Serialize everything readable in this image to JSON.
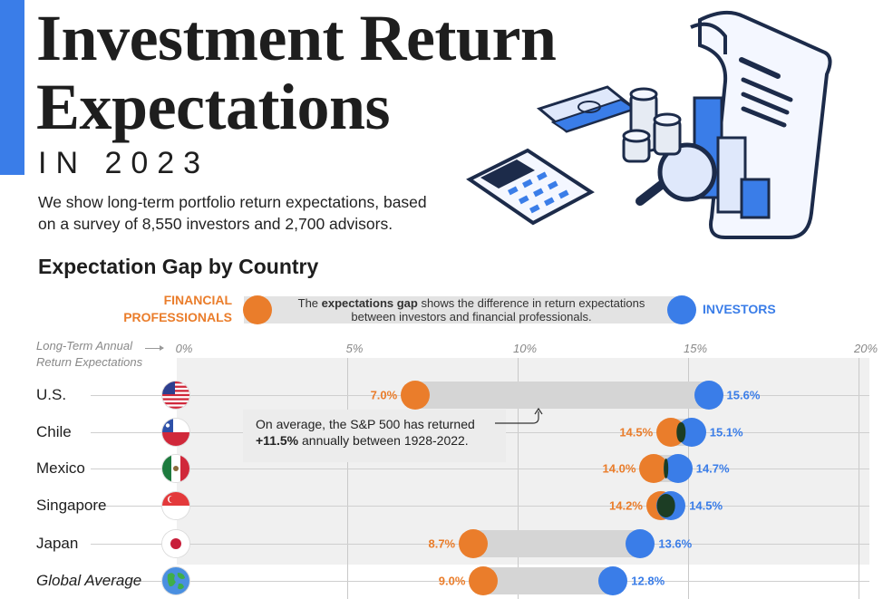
{
  "header": {
    "title_line1": "Investment Return",
    "title_line2": "Expectations",
    "year": "IN 2023",
    "description": "We show long-term portfolio return expectations, based on a survey of 8,550 investors and 2,700 advisors."
  },
  "colors": {
    "financial_professionals": "#ea7d2b",
    "investors": "#3a7de8",
    "accent": "#3a7de8"
  },
  "legend": {
    "financial_professionals_line1": "FINANCIAL",
    "financial_professionals_line2": "PROFESSIONALS",
    "investors": "INVESTORS",
    "note_prefix": "The ",
    "note_bold": "expectations gap",
    "note_suffix": " shows the difference in return expectations between investors and financial professionals."
  },
  "axis": {
    "caption_line1": "Long-Term Annual",
    "caption_line2": "Return Expectations"
  },
  "annotation": {
    "line1": "On average, the S&P 500 has returned",
    "bold": "+11.5%",
    "line2_suffix": " annually between 1928-2022."
  },
  "chart_data": {
    "type": "dumbbell",
    "title": "Expectation Gap by Country",
    "xlabel": "Long-Term Annual Return Expectations",
    "xlim": [
      0,
      20
    ],
    "xticks": [
      0,
      5,
      10,
      15,
      20
    ],
    "xtick_labels": [
      "0%",
      "5%",
      "10%",
      "15%",
      "20%"
    ],
    "series_names": [
      "Financial Professionals",
      "Investors"
    ],
    "categories": [
      "U.S.",
      "Chile",
      "Mexico",
      "Singapore",
      "Japan",
      "Global Average"
    ],
    "rows": [
      {
        "country": "U.S.",
        "flag": "us-flag",
        "financial_professionals": 7.0,
        "investors": 15.6,
        "fin_label": "7.0%",
        "inv_label": "15.6%"
      },
      {
        "country": "Chile",
        "flag": "chile-flag",
        "financial_professionals": 14.5,
        "investors": 15.1,
        "fin_label": "14.5%",
        "inv_label": "15.1%"
      },
      {
        "country": "Mexico",
        "flag": "mexico-flag",
        "financial_professionals": 14.0,
        "investors": 14.7,
        "fin_label": "14.0%",
        "inv_label": "14.7%"
      },
      {
        "country": "Singapore",
        "flag": "singapore-flag",
        "financial_professionals": 14.2,
        "investors": 14.5,
        "fin_label": "14.2%",
        "inv_label": "14.5%"
      },
      {
        "country": "Japan",
        "flag": "japan-flag",
        "financial_professionals": 8.7,
        "investors": 13.6,
        "fin_label": "8.7%",
        "inv_label": "13.6%"
      },
      {
        "country": "Global Average",
        "flag": "globe-icon",
        "financial_professionals": 9.0,
        "investors": 12.8,
        "fin_label": "9.0%",
        "inv_label": "12.8%"
      }
    ],
    "reference": {
      "label": "S&P 500 average 1928-2022",
      "value": 11.5
    }
  }
}
